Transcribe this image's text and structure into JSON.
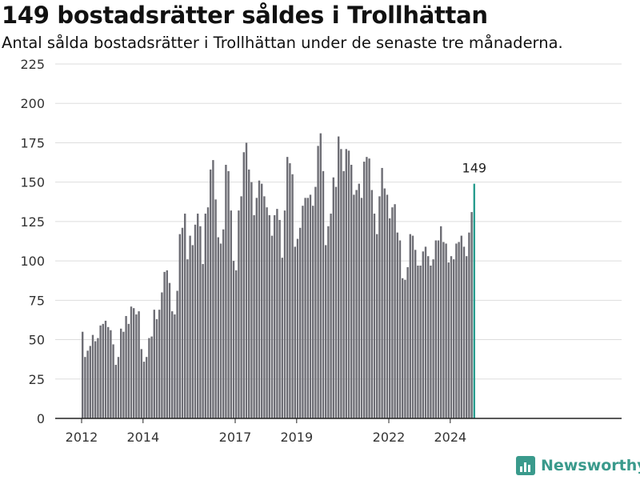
{
  "header": {
    "title": "149 bostadsrätter såldes i Trollhättan",
    "subtitle": "Antal sålda bostadsrätter i Trollhättan under de senaste tre månaderna."
  },
  "brand": {
    "name": "Newsworthy",
    "icon": "newsworthy-logo-icon",
    "color": "#3a9a8c"
  },
  "colors": {
    "bar": "#6e6e75",
    "highlight": "#2a9d8f",
    "grid": "#dddddd",
    "axis": "#222222"
  },
  "chart_data": {
    "type": "bar",
    "ylim": [
      0,
      225
    ],
    "yticks": [
      0,
      25,
      50,
      75,
      100,
      125,
      150,
      175,
      200,
      225
    ],
    "xticks": [
      "2012",
      "2014",
      "2017",
      "2019",
      "2022",
      "2024"
    ],
    "xtick_positions": [
      2012.0,
      2014.0,
      2017.0,
      2019.0,
      2022.0,
      2024.0
    ],
    "x_start": 2012.0,
    "x_step": 0.08333,
    "values": [
      55,
      39,
      43,
      46,
      53,
      49,
      51,
      59,
      60,
      62,
      58,
      56,
      47,
      34,
      39,
      57,
      55,
      65,
      60,
      71,
      70,
      66,
      68,
      44,
      36,
      39,
      51,
      52,
      69,
      63,
      69,
      80,
      93,
      94,
      86,
      68,
      66,
      81,
      117,
      121,
      130,
      101,
      116,
      110,
      123,
      130,
      122,
      98,
      130,
      134,
      158,
      164,
      139,
      115,
      111,
      120,
      161,
      157,
      132,
      100,
      94,
      132,
      141,
      169,
      175,
      158,
      150,
      129,
      140,
      151,
      149,
      141,
      134,
      129,
      116,
      129,
      133,
      126,
      102,
      132,
      166,
      162,
      155,
      109,
      114,
      121,
      135,
      140,
      140,
      142,
      135,
      147,
      173,
      181,
      157,
      110,
      122,
      130,
      153,
      147,
      179,
      171,
      157,
      171,
      170,
      161,
      142,
      145,
      149,
      140,
      163,
      166,
      165,
      145,
      130,
      117,
      141,
      159,
      146,
      142,
      127,
      134,
      136,
      118,
      113,
      89,
      88,
      96,
      117,
      116,
      107,
      97,
      97,
      106,
      109,
      103,
      97,
      101,
      113,
      113,
      122,
      112,
      111,
      99,
      103,
      101,
      111,
      112,
      116,
      109,
      103,
      118,
      131,
      149
    ],
    "highlight_index": 153,
    "highlight_label": "149"
  }
}
